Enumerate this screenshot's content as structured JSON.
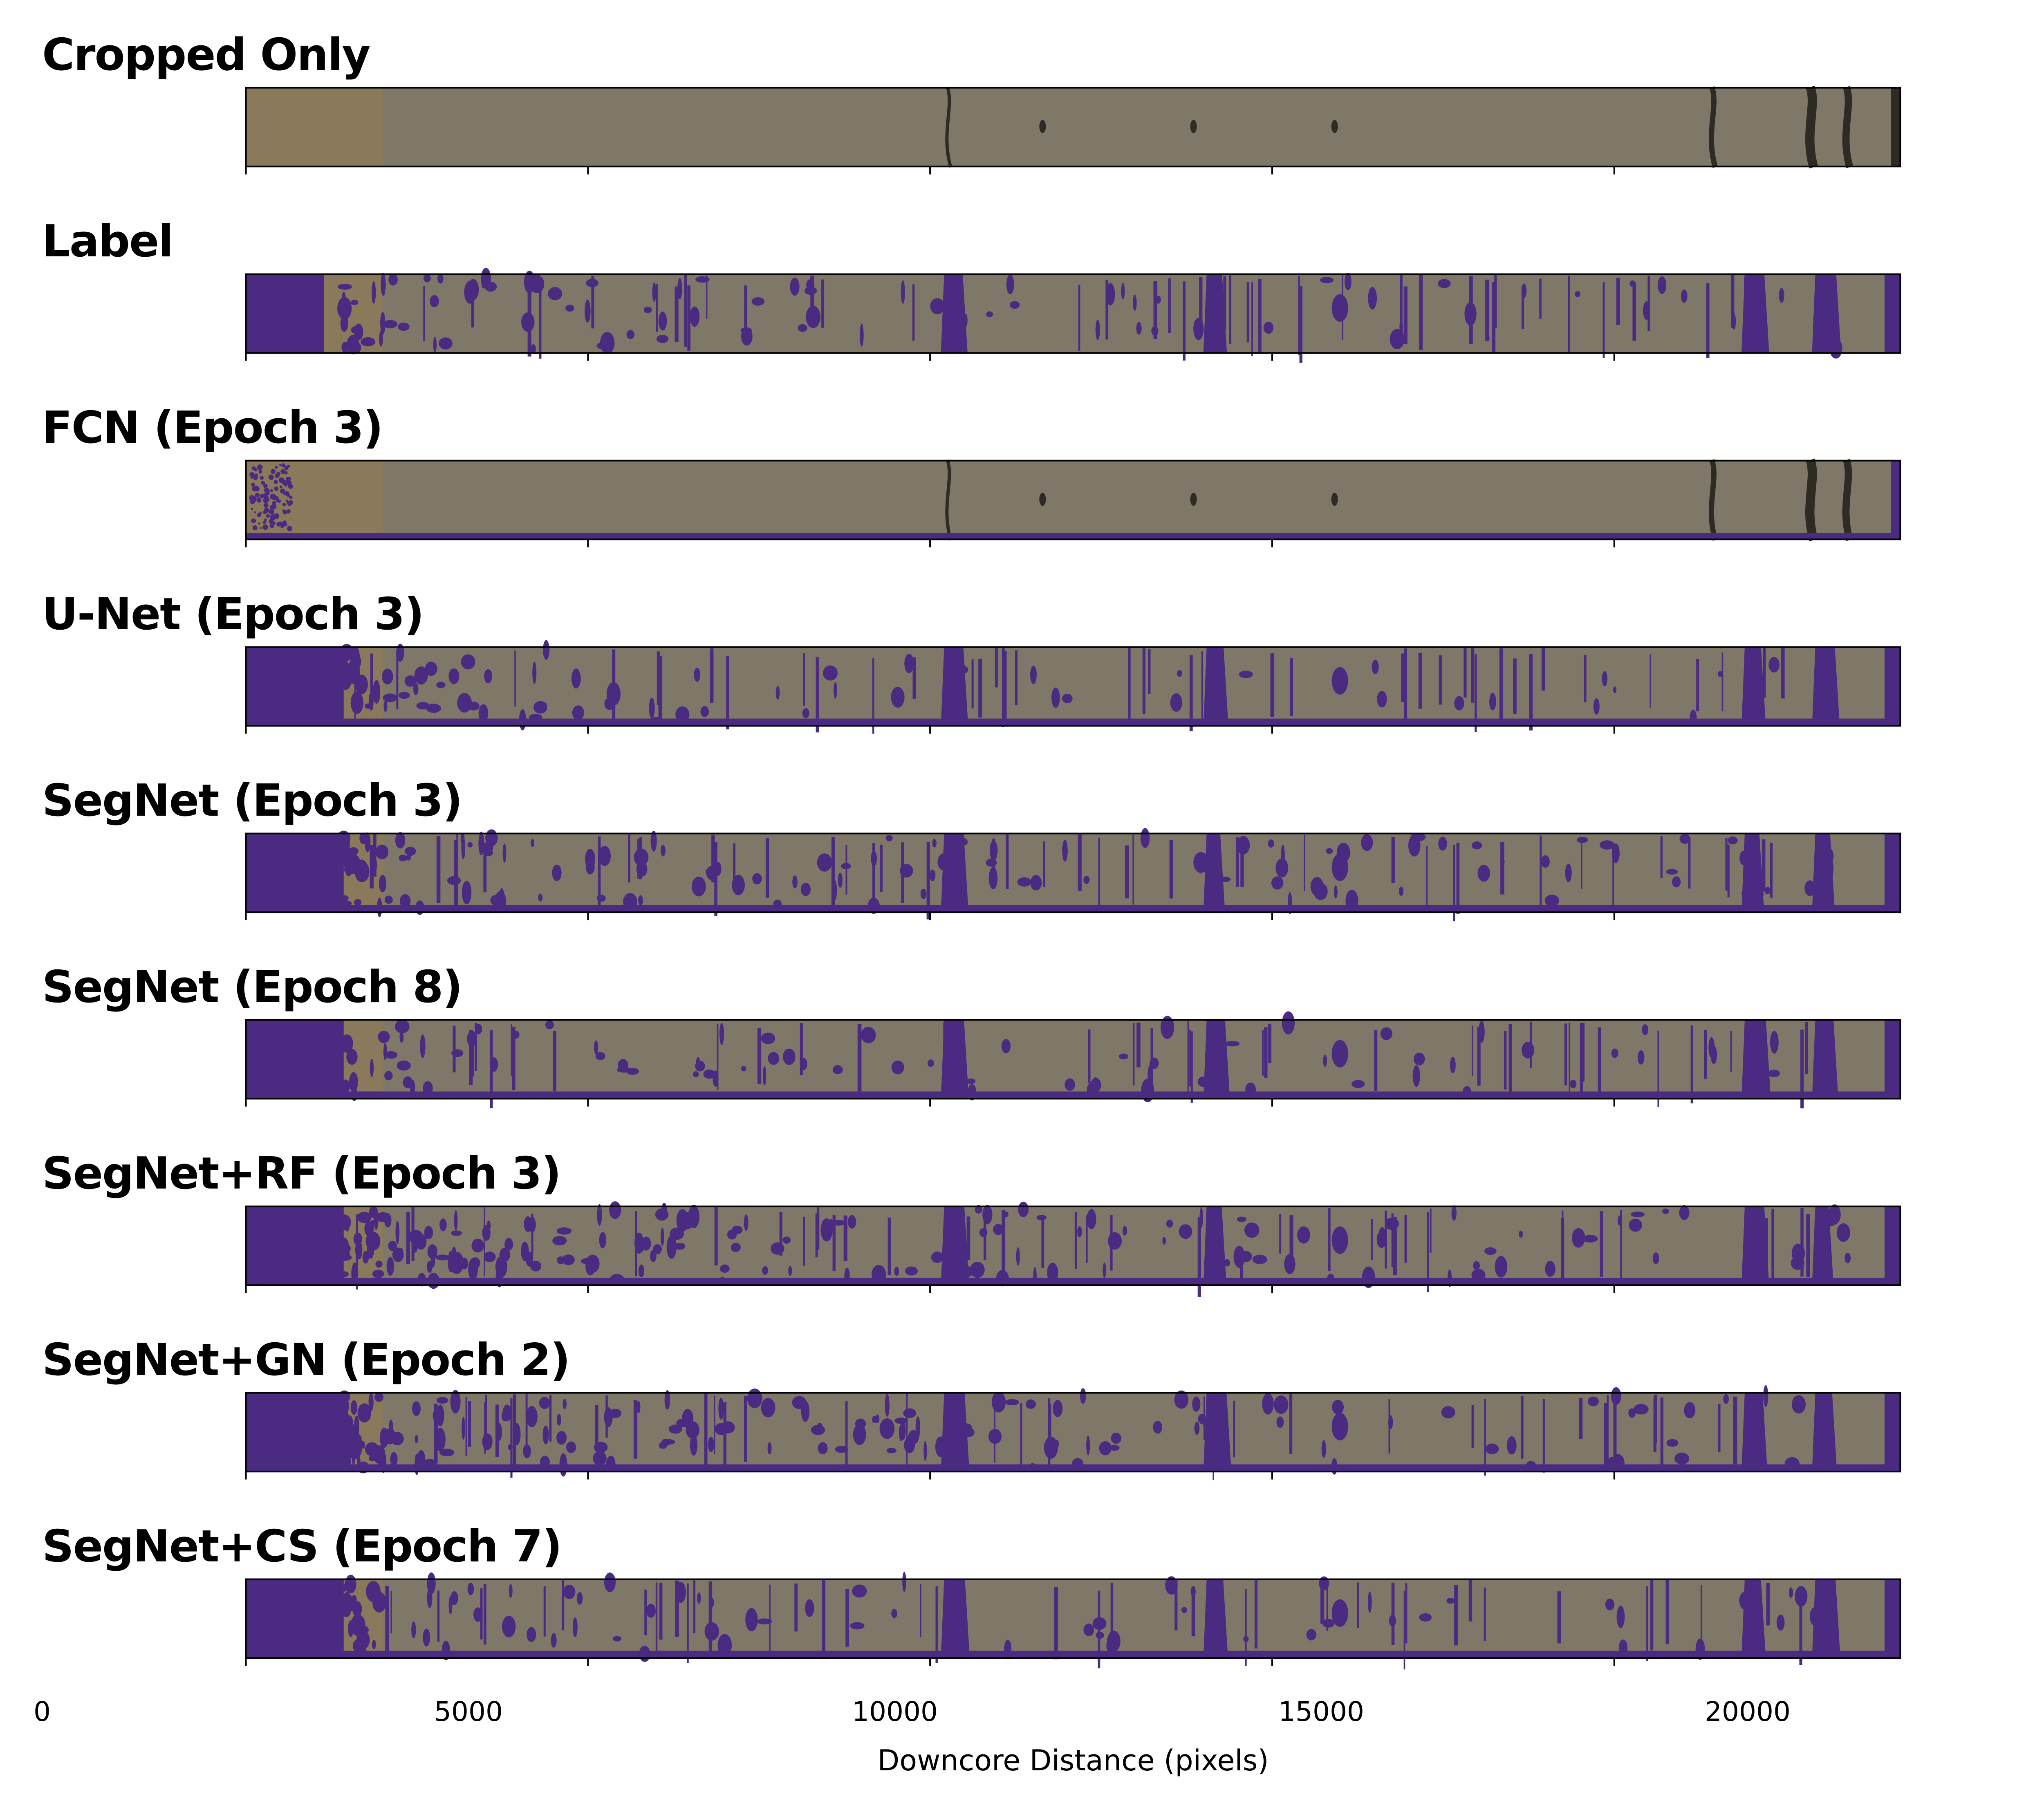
{
  "panels": [
    {
      "title": "Cropped Only",
      "kind": "image"
    },
    {
      "title": "Label",
      "kind": "mask"
    },
    {
      "title": "FCN (Epoch 3)",
      "kind": "fcn"
    },
    {
      "title": "U-Net (Epoch 3)",
      "kind": "mask"
    },
    {
      "title": "SegNet (Epoch 3)",
      "kind": "mask"
    },
    {
      "title": "SegNet (Epoch 8)",
      "kind": "mask"
    },
    {
      "title": "SegNet+RF (Epoch 3)",
      "kind": "mask"
    },
    {
      "title": "SegNet+GN (Epoch 2)",
      "kind": "mask"
    },
    {
      "title": "SegNet+CS (Epoch 7)",
      "kind": "mask"
    }
  ],
  "x_axis": {
    "label": "Downcore Distance (pixels)",
    "ticks": [
      "0",
      "5000",
      "10000",
      "15000",
      "20000"
    ],
    "max": 24200
  },
  "colors": {
    "core": "#7f7768",
    "core_light": "#8a8170",
    "core_warm": "#8d7a55",
    "mask": "#4b2a82",
    "crack": "#2e2a24"
  }
}
